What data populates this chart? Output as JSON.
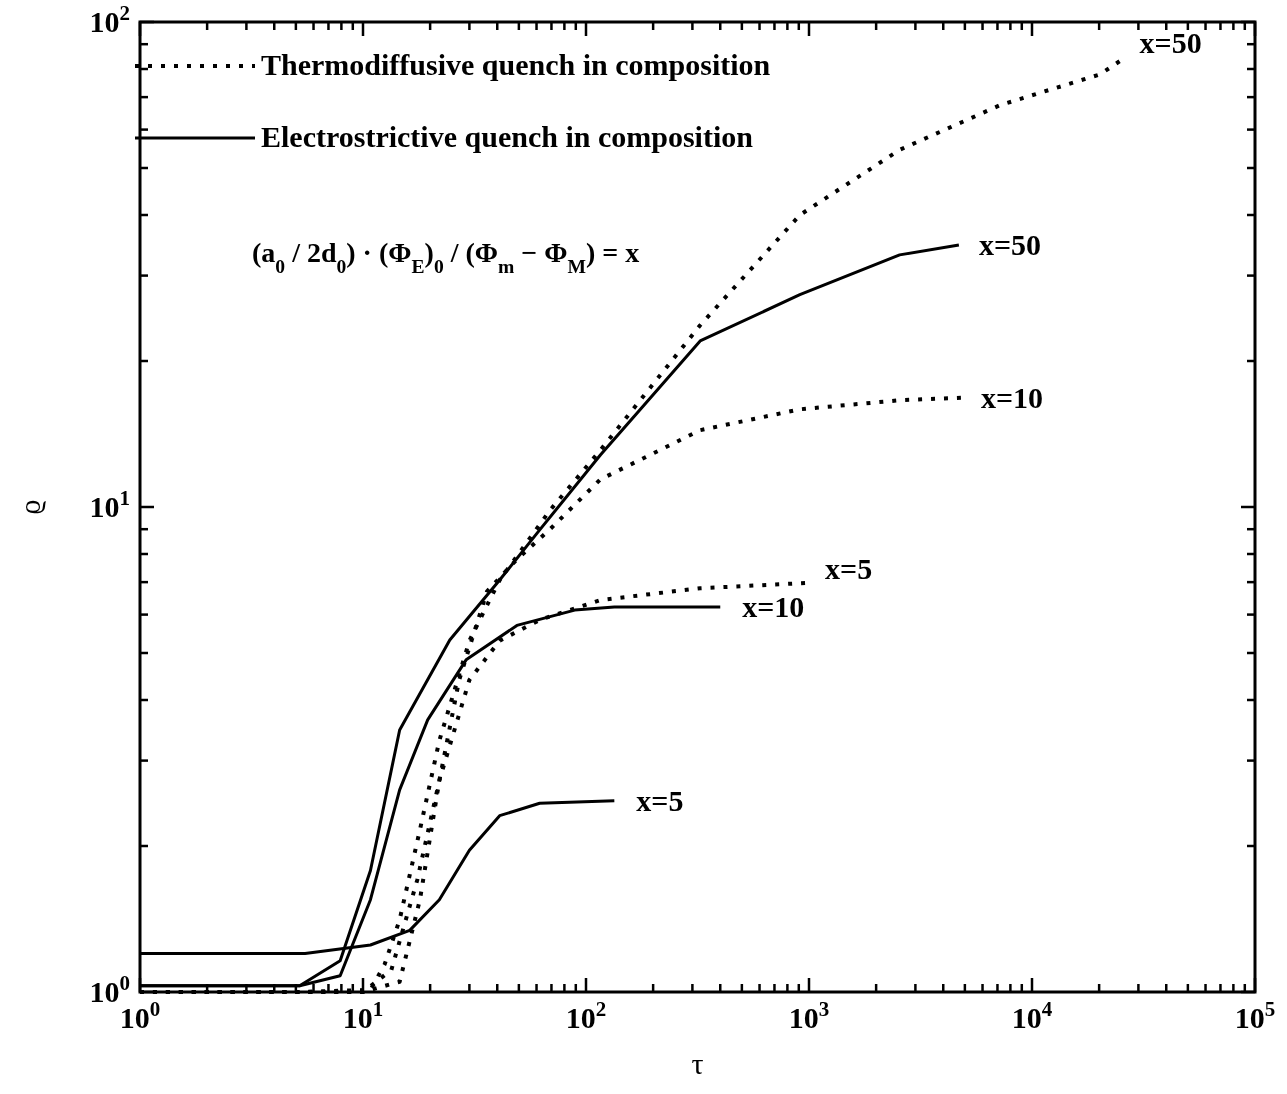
{
  "chart_data": {
    "type": "line",
    "xlabel": "τ",
    "ylabel": "ϱ",
    "log": "xy",
    "xlim": [
      1,
      100000
    ],
    "ylim": [
      1,
      100
    ],
    "xticks": [
      {
        "value": 1,
        "label": "10$^{0}$"
      },
      {
        "value": 2,
        "label": null
      },
      {
        "value": 3,
        "label": null
      },
      {
        "value": 4,
        "label": null
      },
      {
        "value": 5,
        "label": null
      },
      {
        "value": 6,
        "label": null
      },
      {
        "value": 7,
        "label": null
      },
      {
        "value": 8,
        "label": null
      },
      {
        "value": 9,
        "label": null
      },
      {
        "value": 10,
        "label": "10$^{1}$"
      },
      {
        "value": 20,
        "label": null
      },
      {
        "value": 30,
        "label": null
      },
      {
        "value": 40,
        "label": null
      },
      {
        "value": 50,
        "label": null
      },
      {
        "value": 60,
        "label": null
      },
      {
        "value": 70,
        "label": null
      },
      {
        "value": 80,
        "label": null
      },
      {
        "value": 90,
        "label": null
      },
      {
        "value": 100,
        "label": "10$^{2}$"
      },
      {
        "value": 200,
        "label": null
      },
      {
        "value": 300,
        "label": null
      },
      {
        "value": 400,
        "label": null
      },
      {
        "value": 500,
        "label": null
      },
      {
        "value": 600,
        "label": null
      },
      {
        "value": 700,
        "label": null
      },
      {
        "value": 800,
        "label": null
      },
      {
        "value": 900,
        "label": null
      },
      {
        "value": 1000,
        "label": "10$^{3}$"
      },
      {
        "value": 2000,
        "label": null
      },
      {
        "value": 3000,
        "label": null
      },
      {
        "value": 4000,
        "label": null
      },
      {
        "value": 5000,
        "label": null
      },
      {
        "value": 6000,
        "label": null
      },
      {
        "value": 7000,
        "label": null
      },
      {
        "value": 8000,
        "label": null
      },
      {
        "value": 9000,
        "label": null
      },
      {
        "value": 10000,
        "label": "10$^{4}$"
      },
      {
        "value": 20000,
        "label": null
      },
      {
        "value": 30000,
        "label": null
      },
      {
        "value": 40000,
        "label": null
      },
      {
        "value": 50000,
        "label": null
      },
      {
        "value": 60000,
        "label": null
      },
      {
        "value": 70000,
        "label": null
      },
      {
        "value": 80000,
        "label": null
      },
      {
        "value": 90000,
        "label": null
      },
      {
        "value": 100000,
        "label": "10$^{5}$"
      }
    ],
    "yticks": [
      {
        "value": 1,
        "label": "10$^{0}$"
      },
      {
        "value": 2,
        "label": null
      },
      {
        "value": 3,
        "label": null
      },
      {
        "value": 4,
        "label": null
      },
      {
        "value": 5,
        "label": null
      },
      {
        "value": 6,
        "label": null
      },
      {
        "value": 7,
        "label": null
      },
      {
        "value": 8,
        "label": null
      },
      {
        "value": 9,
        "label": null
      },
      {
        "value": 10,
        "label": "10$^{1}$"
      },
      {
        "value": 20,
        "label": null
      },
      {
        "value": 30,
        "label": null
      },
      {
        "value": 40,
        "label": null
      },
      {
        "value": 50,
        "label": null
      },
      {
        "value": 60,
        "label": null
      },
      {
        "value": 70,
        "label": null
      },
      {
        "value": 80,
        "label": null
      },
      {
        "value": 90,
        "label": null
      },
      {
        "value": 100,
        "label": "10$^{2}$"
      }
    ],
    "legend": "top left",
    "series": [
      {
        "name": "Thermodiffusive quench in composition",
        "color": "#000000",
        "line_style": "dotted",
        "x": [
          1,
          5,
          10.8,
          12.5,
          14.6,
          18,
          22,
          30,
          41,
          69,
          116,
          325,
          910,
          2550,
          7200,
          20200,
          24700
        ],
        "values": [
          1.0,
          1.0,
          1.01,
          1.14,
          1.41,
          2.16,
          3.3,
          5.3,
          7.07,
          9.85,
          13.1,
          23.7,
          40,
          54.5,
          67.4,
          78,
          83
        ]
      },
      {
        "name": "Electrostrictive quench in composition",
        "color": "#000000",
        "line_style": "solid",
        "x": [
          1,
          5.2,
          7.9,
          10.8,
          14.6,
          24.5,
          41,
          62,
          116,
          325,
          910,
          2550,
          4700
        ],
        "values": [
          1.03,
          1.03,
          1.16,
          1.78,
          3.47,
          5.32,
          7.07,
          8.97,
          12.8,
          22,
          27.4,
          33.1,
          34.7
        ]
      },
      {
        "color": "#000000",
        "line_style": "dotted",
        "x": [
          1,
          10,
          14.6,
          18,
          22,
          27,
          36,
          49,
          69,
          116,
          325,
          910,
          2550,
          4800
        ],
        "values": [
          1.0,
          1.0,
          1.05,
          1.55,
          2.73,
          4.4,
          6.7,
          7.8,
          9,
          11.4,
          14.4,
          15.9,
          16.6,
          16.8
        ]
      },
      {
        "color": "#000000",
        "line_style": "solid",
        "x": [
          1,
          5.2,
          7.9,
          10.8,
          14.6,
          19.5,
          29,
          49,
          89,
          134,
          400
        ],
        "values": [
          1.03,
          1.03,
          1.08,
          1.55,
          2.61,
          3.64,
          4.84,
          5.7,
          6.13,
          6.22,
          6.22
        ]
      },
      {
        "color": "#000000",
        "line_style": "dotted",
        "x": [
          1,
          10,
          13.4,
          17.5,
          22,
          30,
          41,
          62,
          116,
          325,
          960
        ],
        "values": [
          1.0,
          1.0,
          1.11,
          1.7,
          2.73,
          4.4,
          5.3,
          5.85,
          6.43,
          6.8,
          6.97
        ]
      },
      {
        "color": "#000000",
        "line_style": "solid",
        "x": [
          1,
          5.5,
          10.8,
          16.2,
          22,
          30,
          41,
          62,
          134
        ],
        "values": [
          1.2,
          1.2,
          1.25,
          1.34,
          1.55,
          1.96,
          2.31,
          2.45,
          2.48
        ]
      }
    ],
    "annotations": [
      "x=50",
      "x=50",
      "x=10",
      "x=10",
      "x=5",
      "x=5",
      "(a$_{0}$ / 2d$_{0}$) · (Φ$_{E}$)$_{0}$ / (Φ$_{m}$ − Φ$_{M}$) = x"
    ]
  }
}
